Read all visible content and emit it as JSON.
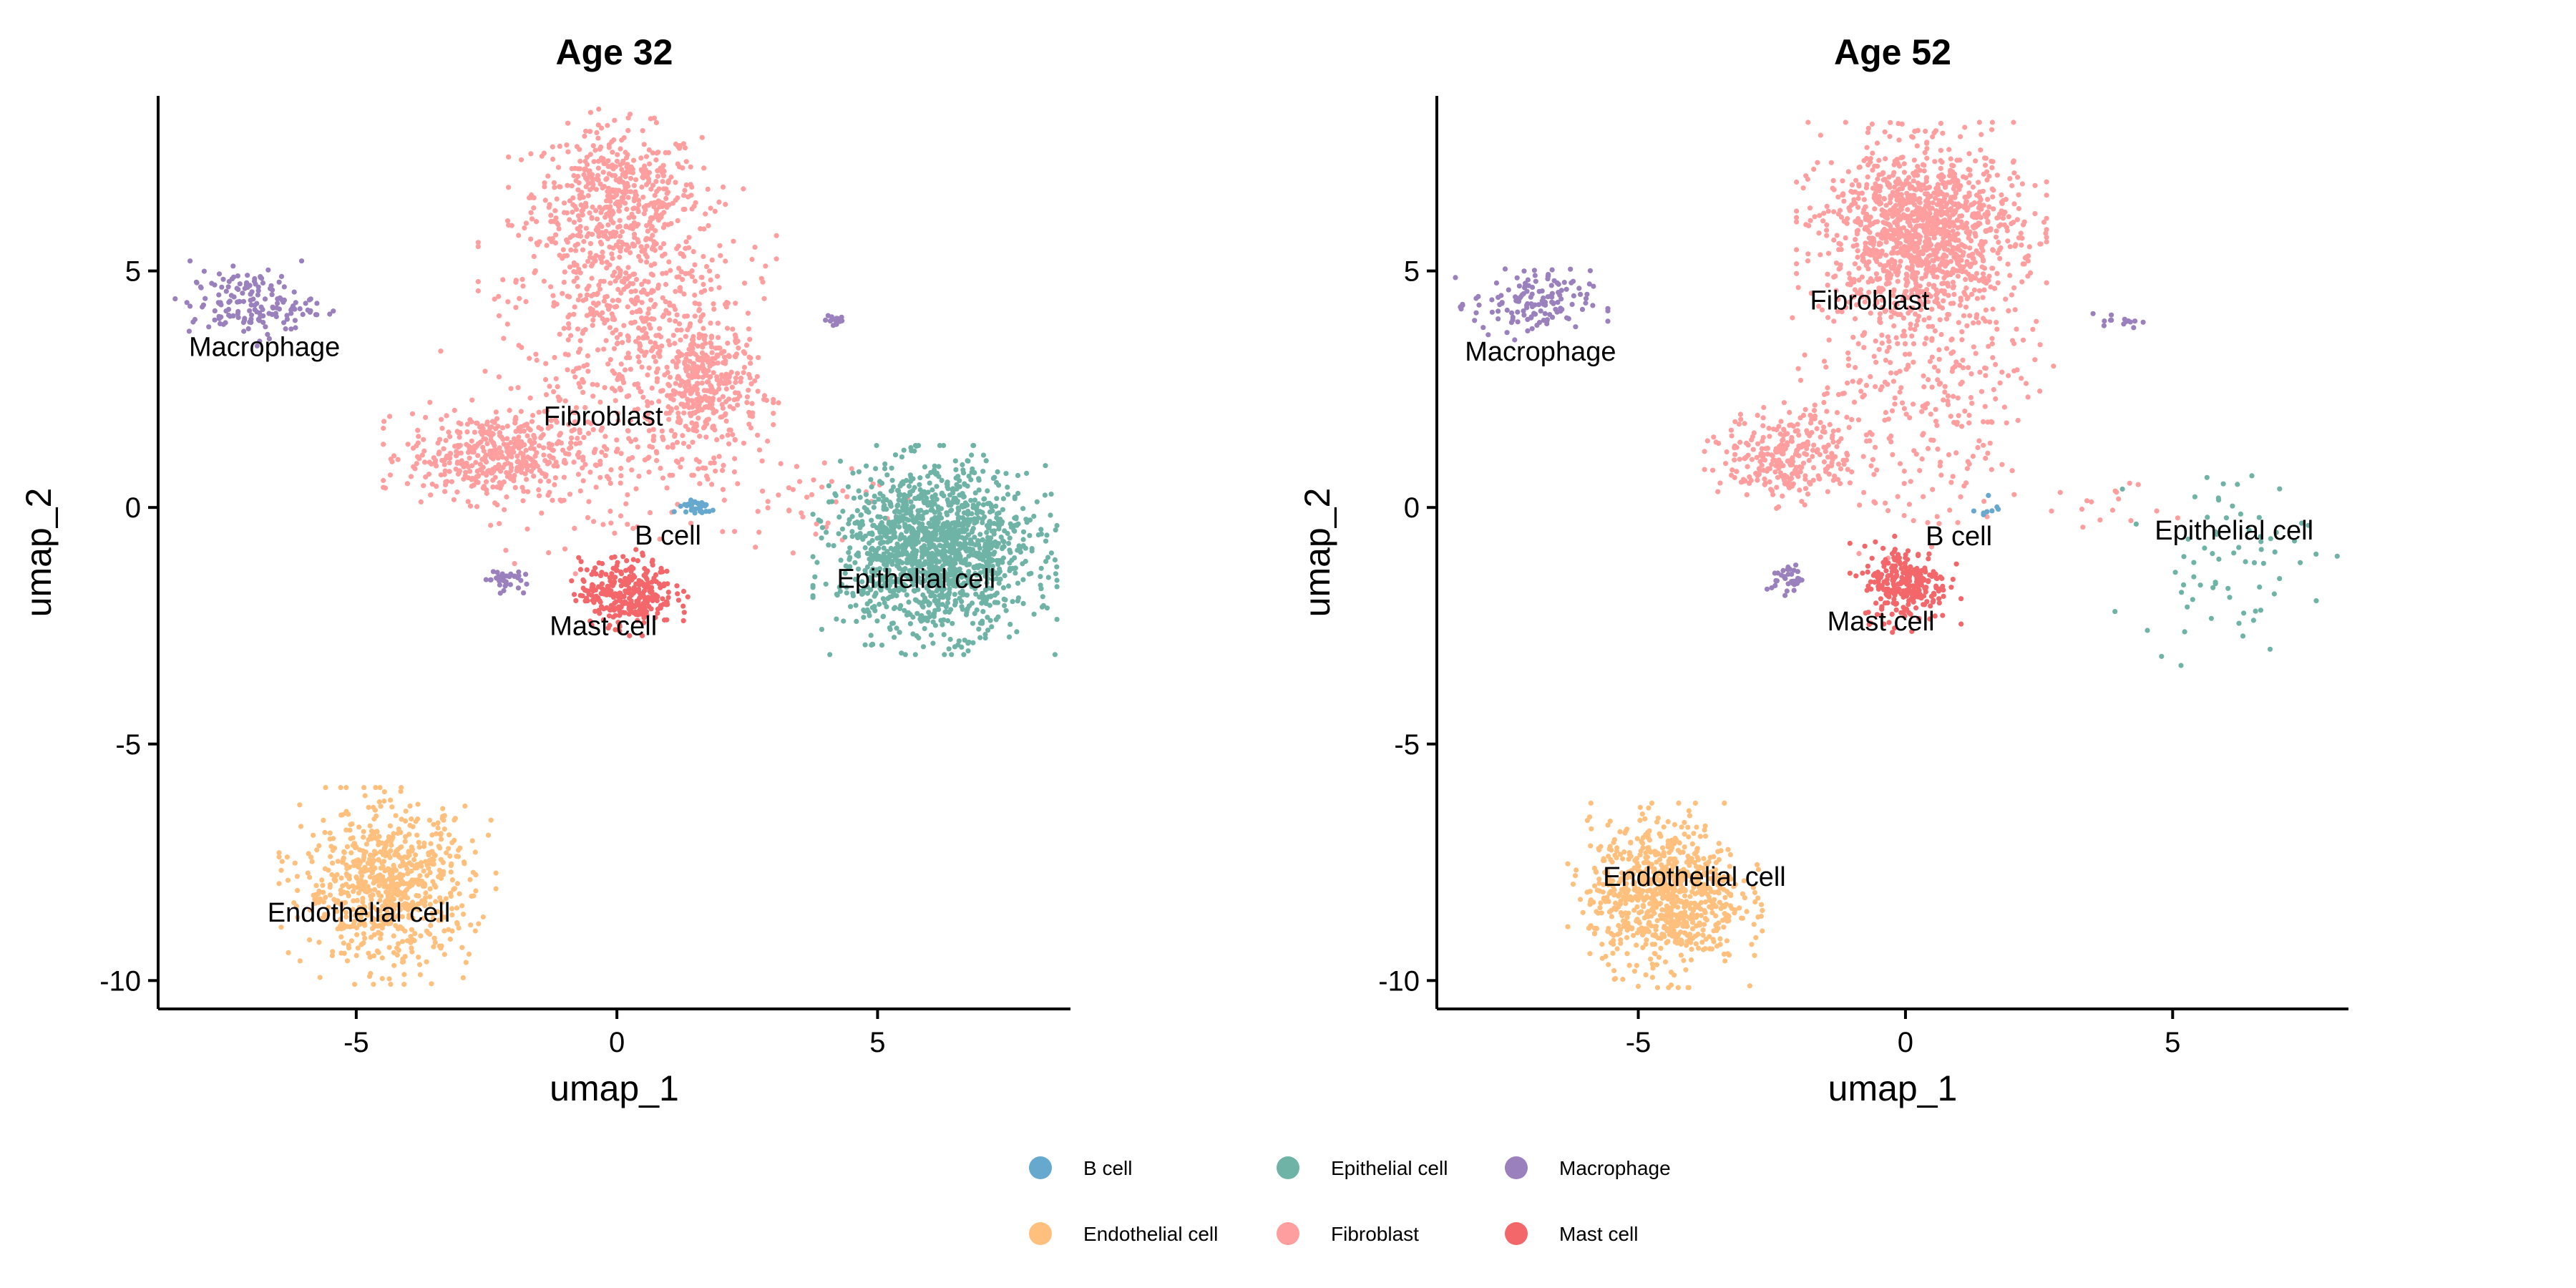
{
  "chart_data": {
    "type": "scatter",
    "legend": {
      "placement": "bottom",
      "entries": [
        {
          "label": "B cell",
          "color": "#67A8CF"
        },
        {
          "label": "Epithelial cell",
          "color": "#6FB3A7"
        },
        {
          "label": "Macrophage",
          "color": "#9A80BC"
        },
        {
          "label": "Endothelial cell",
          "color": "#FFC07E"
        },
        {
          "label": "Fibroblast",
          "color": "#FF9E9E"
        },
        {
          "label": "Mast cell",
          "color": "#F3676A"
        }
      ]
    },
    "panels": [
      {
        "title": "Age 32",
        "xlabel": "umap_1",
        "ylabel": "umap_2",
        "xlim": [
          -8.8,
          8.7
        ],
        "ylim": [
          -10.6,
          8.7
        ],
        "xticks": [
          -5,
          0,
          5
        ],
        "yticks": [
          -10,
          -5,
          0,
          5
        ],
        "grid": false,
        "cluster_labels": [
          {
            "text": "Macrophage",
            "x": -6.76,
            "y": 3.4
          },
          {
            "text": "Fibroblast",
            "x": -0.26,
            "y": 1.93
          },
          {
            "text": "B cell",
            "x": 0.98,
            "y": -0.59
          },
          {
            "text": "Mast cell",
            "x": -0.26,
            "y": -2.5
          },
          {
            "text": "Epithelial cell",
            "x": 5.74,
            "y": -1.5
          },
          {
            "text": "Endothelial cell",
            "x": -4.95,
            "y": -8.56
          }
        ],
        "point_groups": [
          {
            "cell": "Fibroblast",
            "cx": 0.0,
            "cy": 6.6,
            "sx": 0.8,
            "sy": 0.7,
            "n": 450
          },
          {
            "cell": "Fibroblast",
            "cx": 0.2,
            "cy": 4.3,
            "sx": 1.1,
            "sy": 1.2,
            "n": 550
          },
          {
            "cell": "Fibroblast",
            "cx": 1.7,
            "cy": 2.5,
            "sx": 0.5,
            "sy": 0.7,
            "n": 350
          },
          {
            "cell": "Fibroblast",
            "cx": -2.4,
            "cy": 1.1,
            "sx": 0.8,
            "sy": 0.45,
            "n": 420
          },
          {
            "cell": "Fibroblast",
            "cx": 0.0,
            "cy": 1.2,
            "sx": 1.3,
            "sy": 1.0,
            "n": 180
          },
          {
            "cell": "Fibroblast",
            "cx": 3.5,
            "cy": 0.2,
            "sx": 0.8,
            "sy": 0.4,
            "n": 40
          },
          {
            "cell": "Macrophage",
            "cx": -7.0,
            "cy": 4.3,
            "sx": 0.6,
            "sy": 0.35,
            "n": 160
          },
          {
            "cell": "Macrophage",
            "cx": 4.2,
            "cy": 3.95,
            "sx": 0.1,
            "sy": 0.08,
            "n": 20
          },
          {
            "cell": "Macrophage",
            "cx": -2.2,
            "cy": -1.5,
            "sx": 0.18,
            "sy": 0.12,
            "n": 35
          },
          {
            "cell": "B cell",
            "cx": 1.5,
            "cy": 0.0,
            "sx": 0.2,
            "sy": 0.1,
            "n": 30
          },
          {
            "cell": "Mast cell",
            "cx": 0.2,
            "cy": -1.8,
            "sx": 0.45,
            "sy": 0.35,
            "n": 320
          },
          {
            "cell": "Epithelial cell",
            "cx": 6.1,
            "cy": -0.9,
            "sx": 0.9,
            "sy": 0.85,
            "n": 1500
          },
          {
            "cell": "Endothelial cell",
            "cx": -4.4,
            "cy": -8.0,
            "sx": 0.8,
            "sy": 0.8,
            "n": 750
          }
        ]
      },
      {
        "title": "Age 52",
        "xlabel": "umap_1",
        "ylabel": "umap_2",
        "xlim": [
          -8.77,
          8.29
        ],
        "ylim": [
          -10.6,
          8.7
        ],
        "xticks": [
          -5,
          0,
          5
        ],
        "yticks": [
          -10,
          -5,
          0,
          5
        ],
        "grid": false,
        "cluster_labels": [
          {
            "text": "Fibroblast",
            "x": -0.67,
            "y": 4.38
          },
          {
            "text": "Macrophage",
            "x": -6.83,
            "y": 3.3
          },
          {
            "text": "B cell",
            "x": 1.0,
            "y": -0.6
          },
          {
            "text": "Epithelial cell",
            "x": 6.15,
            "y": -0.48
          },
          {
            "text": "Mast cell",
            "x": -0.46,
            "y": -2.4
          },
          {
            "text": "Endothelial cell",
            "x": -3.95,
            "y": -7.8
          }
        ],
        "point_groups": [
          {
            "cell": "Fibroblast",
            "cx": 0.3,
            "cy": 5.8,
            "sx": 0.9,
            "sy": 0.9,
            "n": 1300
          },
          {
            "cell": "Fibroblast",
            "cx": 0.3,
            "cy": 3.0,
            "sx": 1.0,
            "sy": 0.9,
            "n": 220
          },
          {
            "cell": "Fibroblast",
            "cx": -2.2,
            "cy": 1.1,
            "sx": 0.6,
            "sy": 0.45,
            "n": 280
          },
          {
            "cell": "Fibroblast",
            "cx": 0.2,
            "cy": 0.8,
            "sx": 1.2,
            "sy": 0.9,
            "n": 90
          },
          {
            "cell": "Fibroblast",
            "cx": 3.8,
            "cy": 0.1,
            "sx": 0.6,
            "sy": 0.3,
            "n": 15
          },
          {
            "cell": "Macrophage",
            "cx": -7.0,
            "cy": 4.3,
            "sx": 0.55,
            "sy": 0.35,
            "n": 140
          },
          {
            "cell": "Macrophage",
            "cx": 4.0,
            "cy": 3.95,
            "sx": 0.2,
            "sy": 0.08,
            "n": 14
          },
          {
            "cell": "Macrophage",
            "cx": -2.2,
            "cy": -1.5,
            "sx": 0.15,
            "sy": 0.15,
            "n": 35
          },
          {
            "cell": "B cell",
            "cx": 1.5,
            "cy": 0.0,
            "sx": 0.12,
            "sy": 0.12,
            "n": 8
          },
          {
            "cell": "Mast cell",
            "cx": 0.0,
            "cy": -1.6,
            "sx": 0.4,
            "sy": 0.4,
            "n": 260
          },
          {
            "cell": "Epithelial cell",
            "cx": 6.0,
            "cy": -1.0,
            "sx": 0.8,
            "sy": 0.9,
            "n": 70
          },
          {
            "cell": "Endothelial cell",
            "cx": -4.5,
            "cy": -8.2,
            "sx": 0.7,
            "sy": 0.75,
            "n": 850
          }
        ]
      }
    ]
  }
}
